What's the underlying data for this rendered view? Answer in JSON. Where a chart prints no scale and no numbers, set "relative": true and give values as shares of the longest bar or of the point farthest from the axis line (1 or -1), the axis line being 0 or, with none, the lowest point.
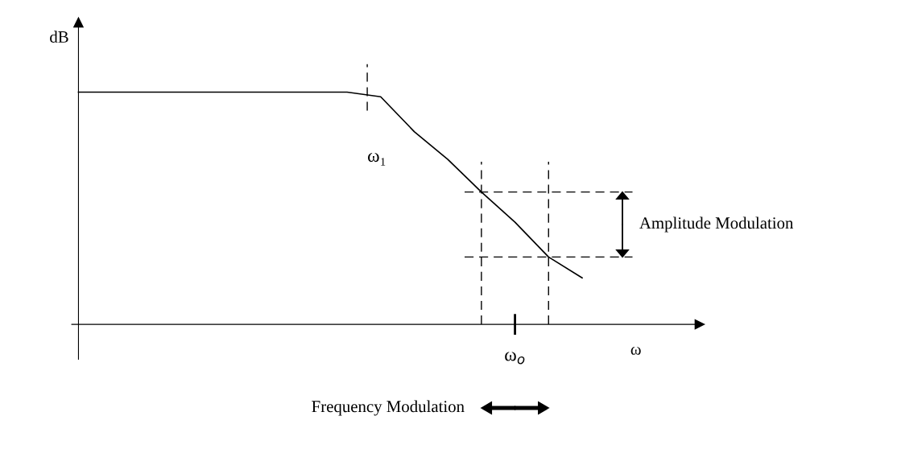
{
  "chart_data": {
    "type": "line",
    "relative": true,
    "ylabel": "dB",
    "xlabel": "ω",
    "categories": [
      null,
      null,
      null,
      null,
      null,
      null,
      null,
      null,
      null,
      null,
      null,
      null,
      null,
      null,
      null,
      null
    ],
    "series": [
      {
        "color": "#000000",
        "values": [
          1,
          1,
          1,
          1,
          1,
          1,
          1,
          1,
          1,
          0.98,
          0.83,
          0.71,
          0.57,
          0.44,
          0.29,
          0.2
        ]
      }
    ],
    "ref_lines": [
      {
        "axis": "y",
        "value": 0.57,
        "line_style": "dashed",
        "color": "#000000"
      },
      {
        "axis": "y",
        "value": 0.29,
        "line_style": "dashed",
        "color": "#000000"
      }
    ],
    "annotations": [
      "ω₁",
      "ω$_{o}$",
      "Amplitude Modulation",
      "Frequency Modulation"
    ],
    "marker": "none",
    "line_style": "solid"
  }
}
